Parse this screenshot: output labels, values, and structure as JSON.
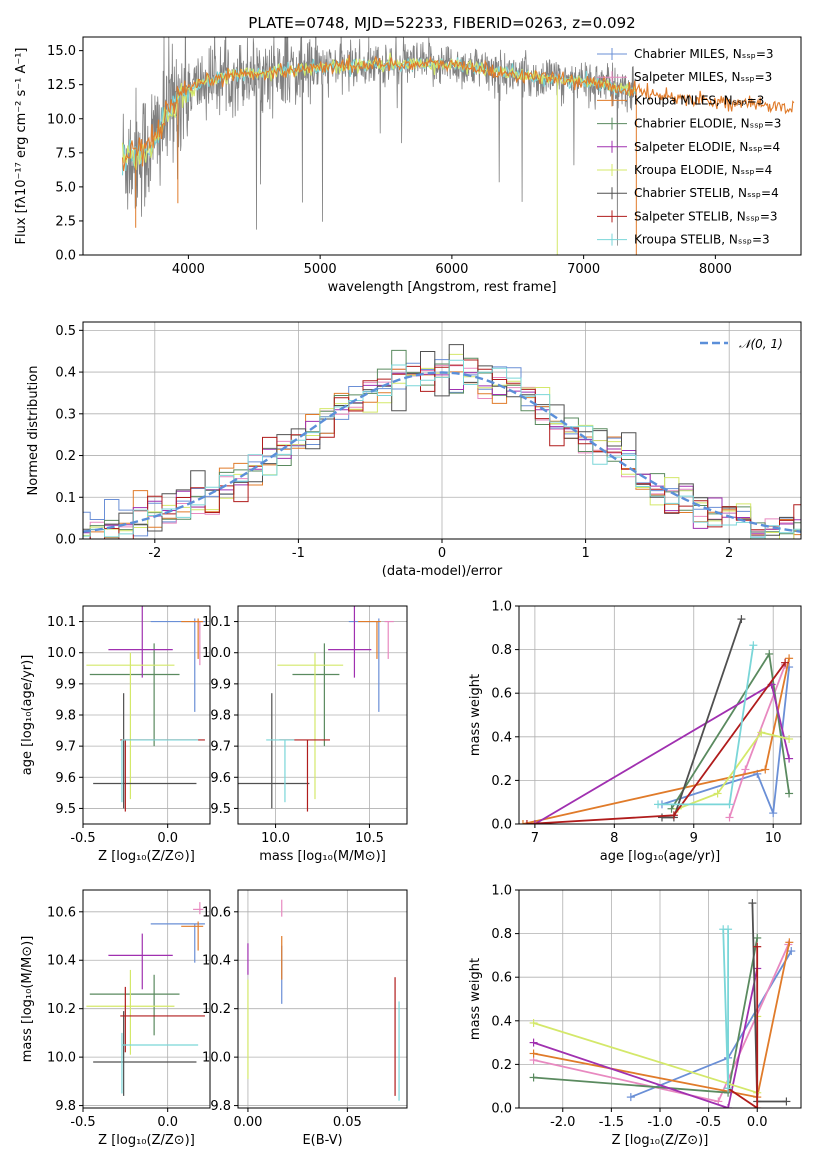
{
  "colors": [
    "#6a8fd6",
    "#e889c0",
    "#e07b2a",
    "#5a8a5f",
    "#a030b0",
    "#d4e86a",
    "#505050",
    "#b01c1c",
    "#7ad6d8"
  ],
  "chart_data": [
    {
      "id": "spectrum",
      "type": "line",
      "title": "PLATE=0748, MJD=52233, FIBERID=0263, z=0.092",
      "xlabel": "wavelength [Angstrom, rest frame]",
      "ylabel": "Flux [fλ10⁻¹⁷ erg cm⁻² s⁻¹ A⁻¹]",
      "xlim": [
        3200,
        8650
      ],
      "ylim": [
        0,
        16
      ],
      "xticks": [
        4000,
        5000,
        6000,
        7000,
        8000
      ],
      "yticks": [
        0.0,
        2.5,
        5.0,
        7.5,
        10.0,
        12.5,
        15.0
      ],
      "grid": false,
      "legend_position": "top-right",
      "legend": [
        "Chabrier MILES, Nₛₛₚ=3",
        "Salpeter MILES, Nₛₛₚ=3",
        "Kroupa MILES, Nₛₛₚ=3",
        "Chabrier ELODIE, Nₛₛₚ=3",
        "Salpeter ELODIE, Nₛₛₚ=4",
        "Kroupa ELODIE, Nₛₛₚ=4",
        "Chabrier STELIB, Nₛₛₚ=4",
        "Salpeter STELIB, Nₛₛₚ=3",
        "Kroupa STELIB, Nₛₛₚ=3"
      ],
      "model_trend": {
        "x": [
          3500,
          3700,
          3850,
          3950,
          4100,
          4300,
          4500,
          4800,
          5000,
          5200,
          5500,
          5800,
          6000,
          6300,
          6500,
          6700,
          6900,
          7100,
          7300,
          7450,
          7600,
          7900,
          8200,
          8400
        ],
        "y": [
          7.0,
          7.8,
          10.5,
          11.8,
          12.6,
          13.2,
          13.3,
          13.6,
          13.8,
          13.9,
          14.0,
          14.0,
          14.0,
          13.5,
          13.2,
          13.0,
          12.8,
          12.6,
          12.2,
          12.0,
          11.7,
          11.4,
          11.1,
          10.9
        ]
      }
    },
    {
      "id": "residuals",
      "type": "line",
      "xlabel": "(data-model)/error",
      "ylabel": "Normed distribution",
      "xlim": [
        -2.5,
        2.5
      ],
      "ylim": [
        0,
        0.52
      ],
      "xticks": [
        -2,
        -1,
        0,
        1,
        2
      ],
      "yticks": [
        0.0,
        0.1,
        0.2,
        0.3,
        0.4,
        0.5
      ],
      "grid": true,
      "legend_position": "top-right",
      "reference_label": "𝒩(0, 1)",
      "bin_width": 0.1
    },
    {
      "id": "age_vs_Z",
      "type": "scatter",
      "xlabel": "Z [log₁₀(Z/Z⊙)]",
      "ylabel": "age  [log₁₀(age/yr)]",
      "xlim": [
        -0.5,
        0.25
      ],
      "ylim": [
        9.45,
        10.15
      ],
      "xticks": [
        -0.5,
        0.0
      ],
      "yticks": [
        9.5,
        9.6,
        9.7,
        9.8,
        9.9,
        10.0,
        10.1
      ],
      "grid": true,
      "points": [
        {
          "x": 0.16,
          "y": 10.1,
          "xerr": [
            0.26,
            0.06
          ],
          "yerr": [
            0.29,
            0.01
          ],
          "color": 0
        },
        {
          "x": 0.19,
          "y": 10.1,
          "xerr": [
            0.04,
            0.02
          ],
          "yerr": [
            0.14,
            0.0
          ],
          "color": 1
        },
        {
          "x": 0.18,
          "y": 10.1,
          "xerr": [
            0.1,
            0.03
          ],
          "yerr": [
            0.12,
            0.01
          ],
          "color": 2
        },
        {
          "x": -0.08,
          "y": 9.93,
          "xerr": [
            0.38,
            0.15
          ],
          "yerr": [
            0.23,
            0.1
          ],
          "color": 3
        },
        {
          "x": -0.15,
          "y": 10.01,
          "xerr": [
            0.2,
            0.18
          ],
          "yerr": [
            0.09,
            0.14
          ],
          "color": 4
        },
        {
          "x": -0.22,
          "y": 9.96,
          "xerr": [
            0.26,
            0.26
          ],
          "yerr": [
            0.43,
            0.04
          ],
          "color": 5
        },
        {
          "x": -0.26,
          "y": 9.58,
          "xerr": [
            0.18,
            0.43
          ],
          "yerr": [
            0.08,
            0.29
          ],
          "color": 6
        },
        {
          "x": -0.25,
          "y": 9.72,
          "xerr": [
            0.03,
            0.47
          ],
          "yerr": [
            0.23,
            0.0
          ],
          "color": 7
        },
        {
          "x": -0.27,
          "y": 9.72,
          "xerr": [
            0.0,
            0.45
          ],
          "yerr": [
            0.2,
            0.0
          ],
          "color": 8
        }
      ]
    },
    {
      "id": "age_vs_mass",
      "type": "scatter",
      "xlabel": "mass [log₁₀(M/M⊙)]",
      "ylabel": "",
      "xlim": [
        9.8,
        10.7
      ],
      "ylim": [
        9.45,
        10.15
      ],
      "xticks": [
        10.0,
        10.5
      ],
      "yticks": [
        9.5,
        9.6,
        9.7,
        9.8,
        9.9,
        10.0,
        10.1
      ],
      "grid": true,
      "points": [
        {
          "x": 10.55,
          "y": 10.1,
          "xerr": [
            0.16,
            0.0
          ],
          "yerr": [
            0.29,
            0.01
          ],
          "color": 0
        },
        {
          "x": 10.6,
          "y": 10.1,
          "xerr": [
            0.02,
            0.03
          ],
          "yerr": [
            0.12,
            0.0
          ],
          "color": 1
        },
        {
          "x": 10.54,
          "y": 10.1,
          "xerr": [
            0.1,
            0.02
          ],
          "yerr": [
            0.12,
            0.0
          ],
          "color": 2
        },
        {
          "x": 10.26,
          "y": 9.93,
          "xerr": [
            0.17,
            0.08
          ],
          "yerr": [
            0.23,
            0.1
          ],
          "color": 3
        },
        {
          "x": 10.42,
          "y": 10.01,
          "xerr": [
            0.14,
            0.09
          ],
          "yerr": [
            0.09,
            0.14
          ],
          "color": 4
        },
        {
          "x": 10.21,
          "y": 9.96,
          "xerr": [
            0.2,
            0.15
          ],
          "yerr": [
            0.43,
            0.04
          ],
          "color": 5
        },
        {
          "x": 9.98,
          "y": 9.58,
          "xerr": [
            0.18,
            0.2
          ],
          "yerr": [
            0.08,
            0.29
          ],
          "color": 6
        },
        {
          "x": 10.17,
          "y": 9.72,
          "xerr": [
            0.15,
            0.12
          ],
          "yerr": [
            0.23,
            0.0
          ],
          "color": 7
        },
        {
          "x": 10.05,
          "y": 9.72,
          "xerr": [
            0.1,
            0.05
          ],
          "yerr": [
            0.2,
            0.0
          ],
          "color": 8
        }
      ]
    },
    {
      "id": "weight_vs_age",
      "type": "line",
      "xlabel": "age  [log₁₀(age/yr)]",
      "ylabel": "mass weight",
      "xlim": [
        6.8,
        10.35
      ],
      "ylim": [
        0,
        1.0
      ],
      "xticks": [
        7,
        8,
        9,
        10
      ],
      "yticks": [
        0.0,
        0.2,
        0.4,
        0.6,
        0.8,
        1.0
      ],
      "grid": true,
      "series": [
        {
          "color": 0,
          "x": [
            8.6,
            9.8,
            10.0,
            10.2
          ],
          "y": [
            0.09,
            0.23,
            0.05,
            0.72
          ]
        },
        {
          "color": 1,
          "x": [
            9.45,
            9.65,
            10.15
          ],
          "y": [
            0.03,
            0.25,
            0.73
          ]
        },
        {
          "color": 2,
          "x": [
            6.85,
            9.9,
            10.2
          ],
          "y": [
            0.0,
            0.25,
            0.76
          ]
        },
        {
          "color": 3,
          "x": [
            8.72,
            9.95,
            10.2
          ],
          "y": [
            0.07,
            0.78,
            0.14
          ]
        },
        {
          "color": 4,
          "x": [
            7.0,
            9.98,
            10.2
          ],
          "y": [
            0.0,
            0.64,
            0.3
          ]
        },
        {
          "color": 5,
          "x": [
            8.8,
            9.3,
            9.85,
            10.2
          ],
          "y": [
            0.07,
            0.14,
            0.42,
            0.39
          ]
        },
        {
          "color": 6,
          "x": [
            8.6,
            8.75,
            9.6
          ],
          "y": [
            0.03,
            0.03,
            0.94
          ]
        },
        {
          "color": 7,
          "x": [
            6.9,
            8.75,
            10.15
          ],
          "y": [
            0.0,
            0.04,
            0.74
          ]
        },
        {
          "color": 8,
          "x": [
            8.55,
            9.45,
            9.75
          ],
          "y": [
            0.09,
            0.09,
            0.82
          ]
        }
      ]
    },
    {
      "id": "mass_vs_Z",
      "type": "scatter",
      "xlabel": "Z [log₁₀(Z/Z⊙)]",
      "ylabel": "mass [log₁₀(M/M⊙)]",
      "xlim": [
        -0.5,
        0.25
      ],
      "ylim": [
        9.79,
        10.69
      ],
      "xticks": [
        -0.5,
        0.0
      ],
      "yticks": [
        9.8,
        10.0,
        10.2,
        10.4,
        10.6
      ],
      "grid": true,
      "points": [
        {
          "x": 0.16,
          "y": 10.55,
          "xerr": [
            0.26,
            0.06
          ],
          "yerr": [
            0.16,
            0.0
          ],
          "color": 0
        },
        {
          "x": 0.19,
          "y": 10.61,
          "xerr": [
            0.04,
            0.02
          ],
          "yerr": [
            0.02,
            0.03
          ],
          "color": 1
        },
        {
          "x": 0.18,
          "y": 10.54,
          "xerr": [
            0.1,
            0.03
          ],
          "yerr": [
            0.1,
            0.02
          ],
          "color": 2
        },
        {
          "x": -0.08,
          "y": 10.26,
          "xerr": [
            0.38,
            0.15
          ],
          "yerr": [
            0.17,
            0.08
          ],
          "color": 3
        },
        {
          "x": -0.15,
          "y": 10.42,
          "xerr": [
            0.2,
            0.18
          ],
          "yerr": [
            0.14,
            0.09
          ],
          "color": 4
        },
        {
          "x": -0.22,
          "y": 10.21,
          "xerr": [
            0.26,
            0.26
          ],
          "yerr": [
            0.2,
            0.15
          ],
          "color": 5
        },
        {
          "x": -0.26,
          "y": 9.98,
          "xerr": [
            0.18,
            0.43
          ],
          "yerr": [
            0.14,
            0.21
          ],
          "color": 6
        },
        {
          "x": -0.25,
          "y": 10.17,
          "xerr": [
            0.03,
            0.47
          ],
          "yerr": [
            0.15,
            0.12
          ],
          "color": 7
        },
        {
          "x": -0.27,
          "y": 10.05,
          "xerr": [
            0.0,
            0.45
          ],
          "yerr": [
            0.2,
            0.05
          ],
          "color": 8
        }
      ]
    },
    {
      "id": "mass_vs_ebv",
      "type": "scatter",
      "xlabel": "E(B-V)",
      "ylabel": "",
      "xlim": [
        -0.005,
        0.08
      ],
      "ylim": [
        9.79,
        10.69
      ],
      "xticks": [
        0.0,
        0.05
      ],
      "xtick_labels": [
        "0.00",
        "0.05"
      ],
      "yticks": [
        9.8,
        10.0,
        10.2,
        10.4,
        10.6
      ],
      "grid": true,
      "points": [
        {
          "x": 0.017,
          "y": 10.41,
          "xerr": [
            0,
            0
          ],
          "yerr": [
            0.19,
            0.05
          ],
          "color": 0
        },
        {
          "x": 0.017,
          "y": 10.6,
          "xerr": [
            0,
            0
          ],
          "yerr": [
            0.02,
            0.05
          ],
          "color": 1
        },
        {
          "x": 0.017,
          "y": 10.42,
          "xerr": [
            0,
            0
          ],
          "yerr": [
            0.1,
            0.08
          ],
          "color": 2
        },
        {
          "x": 0.0,
          "y": 10.4,
          "xerr": [
            0,
            0
          ],
          "yerr": [
            0.06,
            0.07
          ],
          "color": 4
        },
        {
          "x": 0.0,
          "y": 10.1,
          "xerr": [
            0,
            0
          ],
          "yerr": [
            0.19,
            0.22
          ],
          "color": 5
        },
        {
          "x": 0.074,
          "y": 10.1,
          "xerr": [
            0,
            0
          ],
          "yerr": [
            0.26,
            0.23
          ],
          "color": 7
        },
        {
          "x": 0.076,
          "y": 10.0,
          "xerr": [
            0,
            0
          ],
          "yerr": [
            0.18,
            0.23
          ],
          "color": 8
        }
      ]
    },
    {
      "id": "weight_vs_Z",
      "type": "line",
      "xlabel": "Z [log₁₀(Z/Z⊙)]",
      "ylabel": "mass weight",
      "xlim": [
        -2.45,
        0.45
      ],
      "ylim": [
        0,
        1.0
      ],
      "xticks": [
        -2.0,
        -1.5,
        -1.0,
        -0.5,
        0.0
      ],
      "yticks": [
        0.0,
        0.2,
        0.4,
        0.6,
        0.8,
        1.0
      ],
      "grid": true,
      "series": [
        {
          "color": 0,
          "x": [
            -1.3,
            -0.3,
            0.35
          ],
          "y": [
            0.05,
            0.23,
            0.72
          ]
        },
        {
          "color": 1,
          "x": [
            -2.3,
            -0.4,
            0.32
          ],
          "y": [
            0.22,
            0.03,
            0.75
          ]
        },
        {
          "color": 2,
          "x": [
            -2.3,
            0.0,
            0.33
          ],
          "y": [
            0.25,
            0.05,
            0.76
          ]
        },
        {
          "color": 3,
          "x": [
            -2.3,
            -0.3,
            0.0
          ],
          "y": [
            0.14,
            0.07,
            0.78
          ]
        },
        {
          "color": 4,
          "x": [
            -2.3,
            -0.3,
            0.0
          ],
          "y": [
            0.3,
            0.0,
            0.64
          ]
        },
        {
          "color": 5,
          "x": [
            -2.3,
            0.0,
            0.0
          ],
          "y": [
            0.39,
            0.07,
            0.42
          ]
        },
        {
          "color": 6,
          "x": [
            -0.05,
            0.0,
            0.3
          ],
          "y": [
            0.94,
            0.03,
            0.03
          ]
        },
        {
          "color": 7,
          "x": [
            -0.3,
            0.0,
            0.0
          ],
          "y": [
            0.09,
            0.0,
            0.74
          ]
        },
        {
          "color": 8,
          "x": [
            -0.35,
            -0.3,
            -0.3
          ],
          "y": [
            0.82,
            0.09,
            0.82
          ]
        }
      ]
    }
  ]
}
